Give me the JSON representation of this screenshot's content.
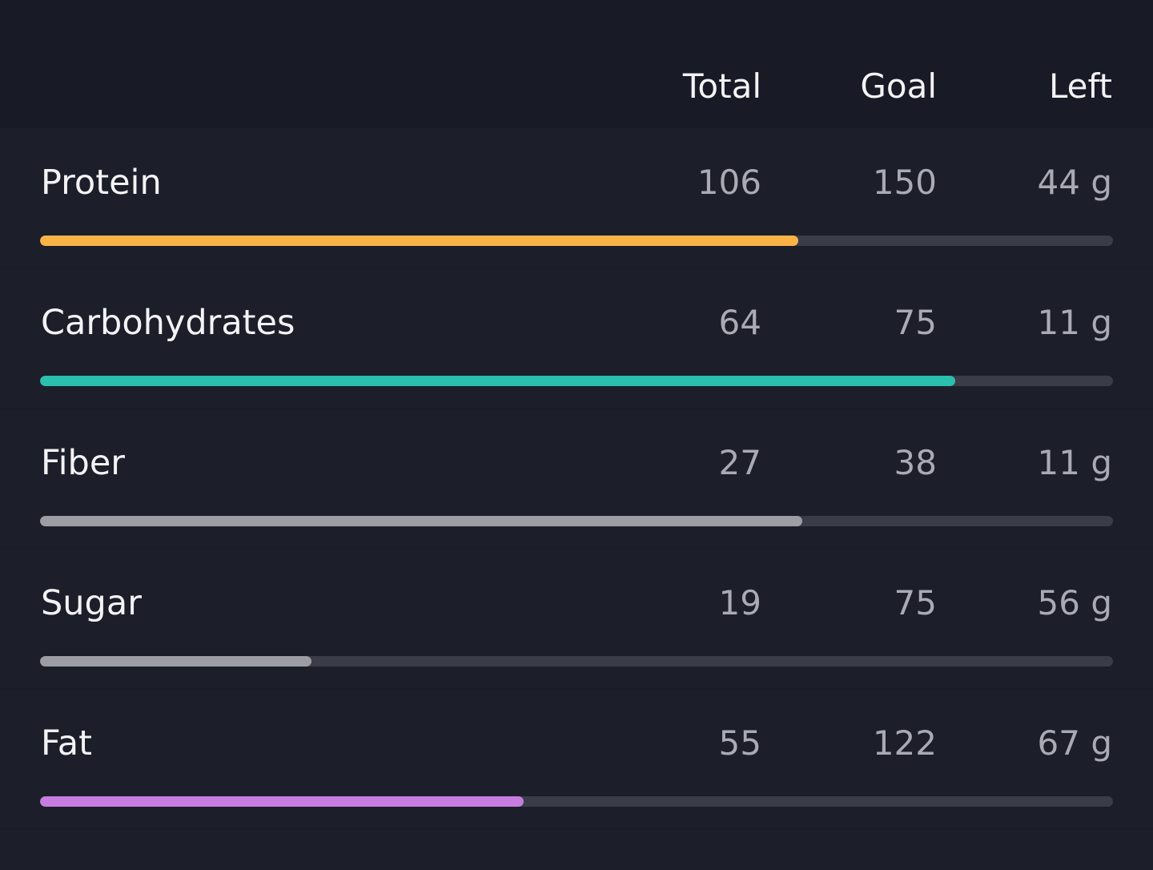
{
  "header": {
    "total_label": "Total",
    "goal_label": "Goal",
    "left_label": "Left"
  },
  "nutrients": [
    {
      "name": "Protein",
      "total": "106",
      "goal": "150",
      "left": "44 g",
      "progress": 0.7067,
      "color": "#fbb347"
    },
    {
      "name": "Carbohydrates",
      "total": "64",
      "goal": "75",
      "left": "11 g",
      "progress": 0.8533,
      "color": "#2bbfad"
    },
    {
      "name": "Fiber",
      "total": "27",
      "goal": "38",
      "left": "11 g",
      "progress": 0.7105,
      "color": "#9d9ea5"
    },
    {
      "name": "Sugar",
      "total": "19",
      "goal": "75",
      "left": "56 g",
      "progress": 0.2533,
      "color": "#9d9ea5"
    },
    {
      "name": "Fat",
      "total": "55",
      "goal": "122",
      "left": "67 g",
      "progress": 0.4508,
      "color": "#c77ddf"
    }
  ],
  "colors": {
    "background": "#1c1e2a",
    "header_background": "#181a25",
    "track": "#3a3c48"
  }
}
